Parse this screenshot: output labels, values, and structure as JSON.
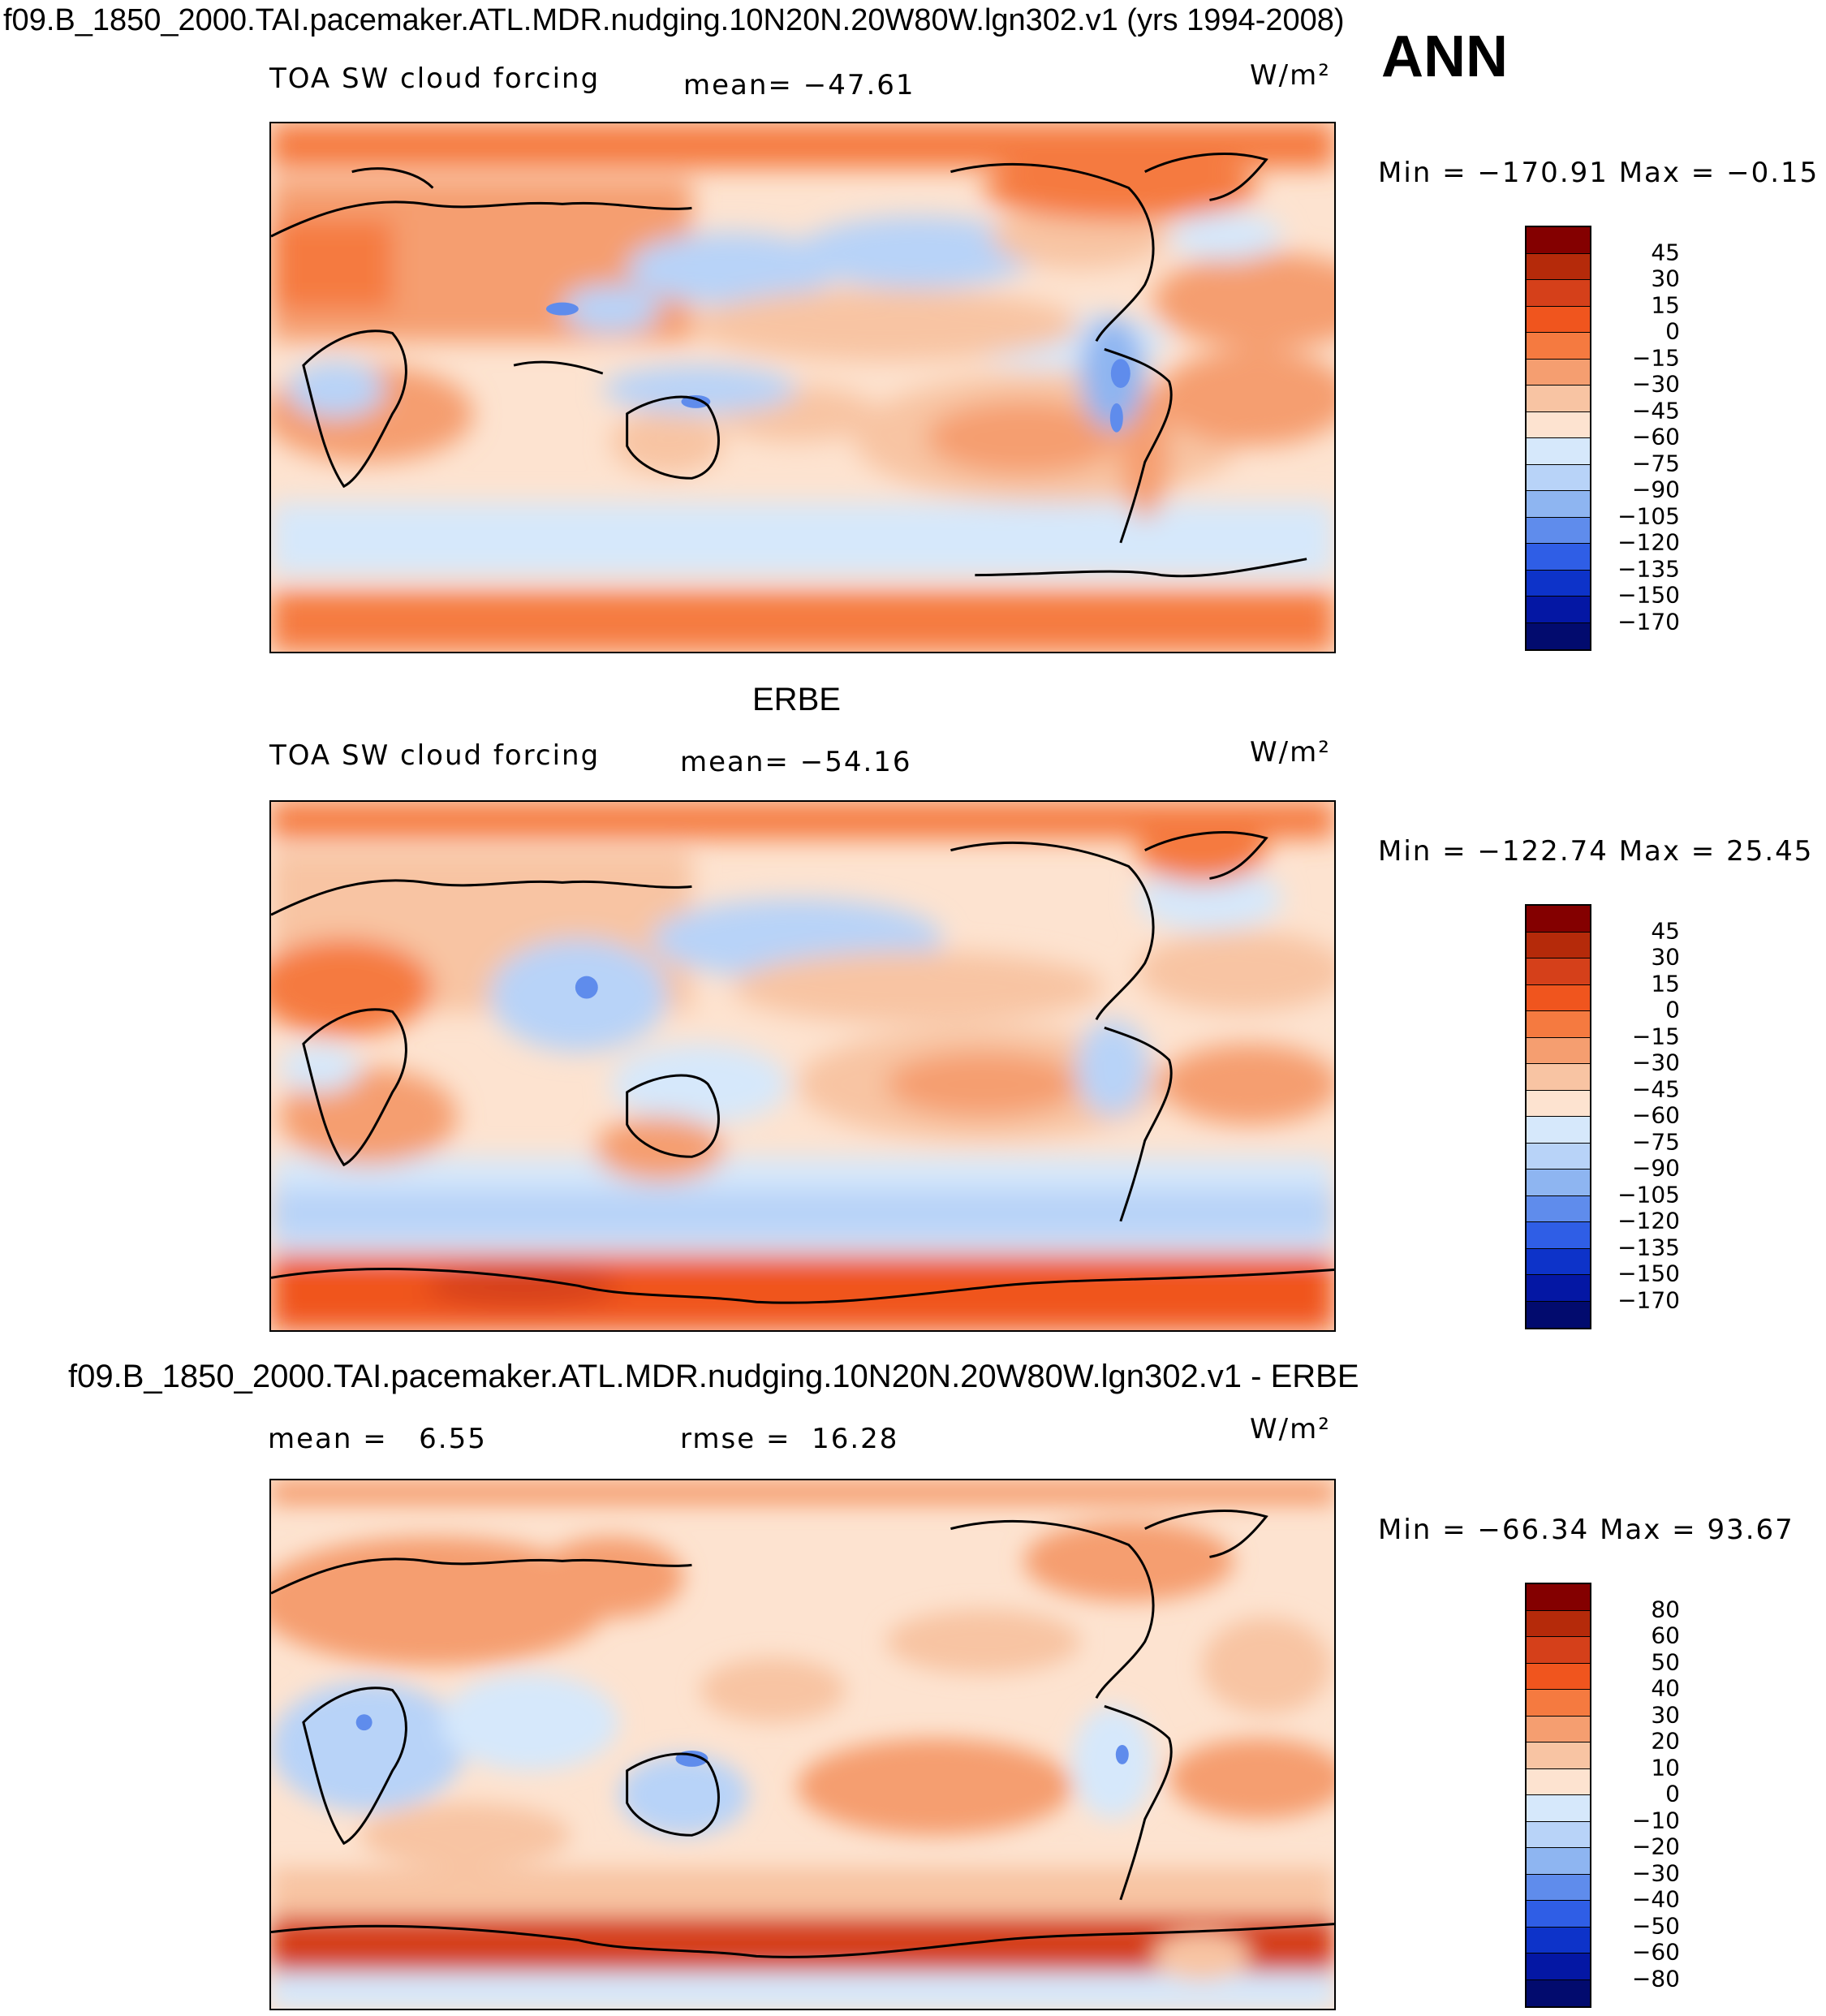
{
  "header": {
    "title": "f09.B_1850_2000.TAI.pacemaker.ATL.MDR.nudging.10N20N.20W80W.lgn302.v1 (yrs 1994-2008)",
    "season": "ANN"
  },
  "panels": [
    {
      "subtitle": "",
      "variable": "TOA SW cloud forcing",
      "stat_label": "mean=",
      "stat_value": "−47.61",
      "units": "W/m²",
      "range_text": "Min = −170.91  Max =  −0.15",
      "levels": [
        "45",
        "30",
        "15",
        "0",
        "−15",
        "−30",
        "−45",
        "−60",
        "−75",
        "−90",
        "−105",
        "−120",
        "−135",
        "−150",
        "−170"
      ],
      "colors": [
        "#840000",
        "#b52a0a",
        "#d5401a",
        "#f0551e",
        "#f57a40",
        "#f59e70",
        "#f8c4a3",
        "#fde3d0",
        "#d6e8fb",
        "#b8d3f8",
        "#8eb5f1",
        "#5f8cec",
        "#2f5ee6",
        "#0d33c9",
        "#0417a4",
        "#020b6e"
      ]
    },
    {
      "subtitle": "ERBE",
      "variable": "TOA SW cloud forcing",
      "stat_label": "mean=",
      "stat_value": "−54.16",
      "units": "W/m²",
      "range_text": "Min = −122.74  Max =   25.45",
      "levels": [
        "45",
        "30",
        "15",
        "0",
        "−15",
        "−30",
        "−45",
        "−60",
        "−75",
        "−90",
        "−105",
        "−120",
        "−135",
        "−150",
        "−170"
      ],
      "colors": [
        "#840000",
        "#b52a0a",
        "#d5401a",
        "#f0551e",
        "#f57a40",
        "#f59e70",
        "#f8c4a3",
        "#fde3d0",
        "#d6e8fb",
        "#b8d3f8",
        "#8eb5f1",
        "#5f8cec",
        "#2f5ee6",
        "#0d33c9",
        "#0417a4",
        "#020b6e"
      ]
    },
    {
      "subtitle": "f09.B_1850_2000.TAI.pacemaker.ATL.MDR.nudging.10N20N.20W80W.lgn302.v1 - ERBE",
      "variable": "",
      "stat_label": "mean =",
      "stat_value": "6.55",
      "rmse_label": "rmse =",
      "rmse_value": "16.28",
      "units": "W/m²",
      "range_text": "Min = −66.34  Max =   93.67",
      "levels": [
        "80",
        "60",
        "50",
        "40",
        "30",
        "20",
        "10",
        "0",
        "−10",
        "−20",
        "−30",
        "−40",
        "−50",
        "−60",
        "−80"
      ],
      "colors": [
        "#840000",
        "#b52a0a",
        "#d5401a",
        "#f0551e",
        "#f57a40",
        "#f59e70",
        "#f8c4a3",
        "#fde3d0",
        "#d6e8fb",
        "#b8d3f8",
        "#8eb5f1",
        "#5f8cec",
        "#2f5ee6",
        "#0d33c9",
        "#0417a4",
        "#020b6e"
      ]
    }
  ]
}
